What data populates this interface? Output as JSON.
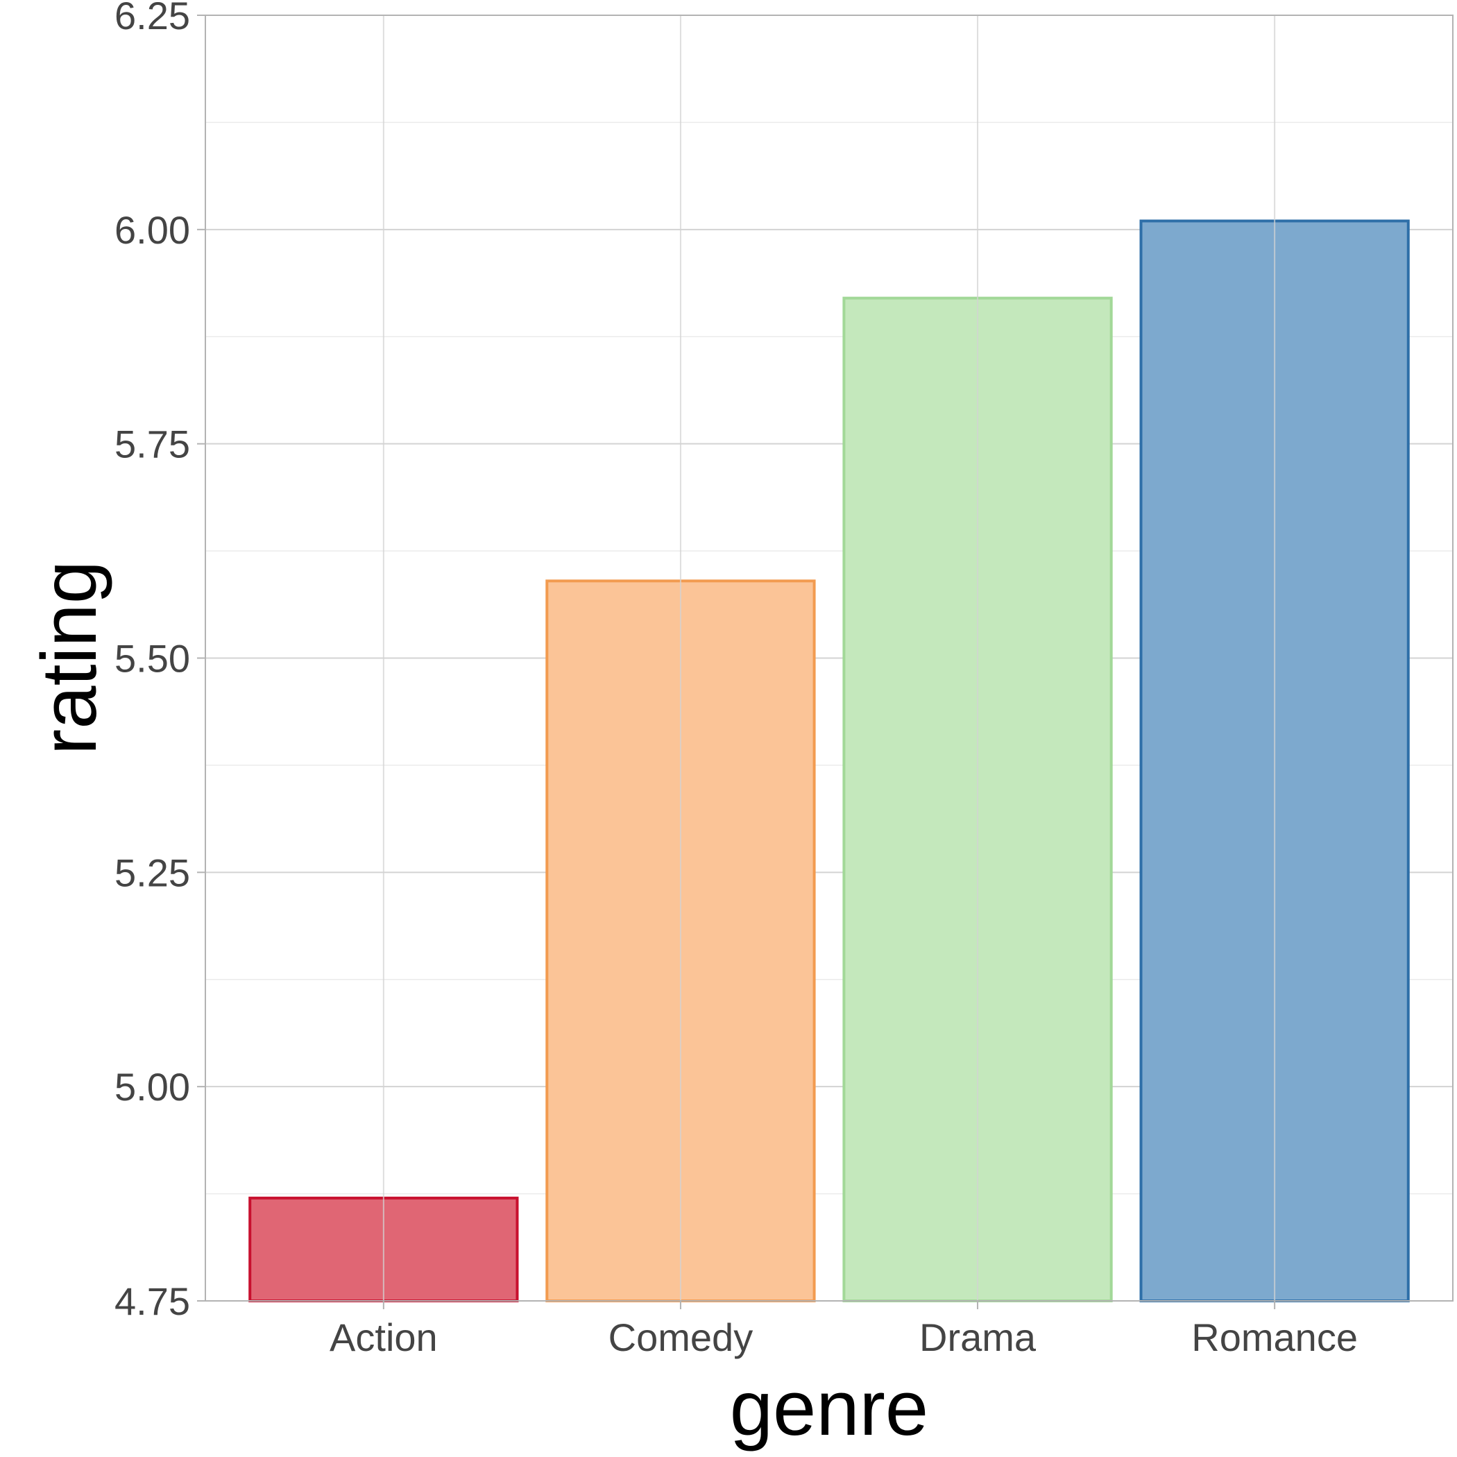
{
  "chart_data": {
    "type": "bar",
    "title": "",
    "xlabel": "genre",
    "ylabel": "rating",
    "categories": [
      "Action",
      "Comedy",
      "Drama",
      "Romance"
    ],
    "values": [
      4.87,
      5.59,
      5.92,
      6.01
    ],
    "colors": {
      "fill": [
        "#E06674",
        "#FBC497",
        "#C4E8BC",
        "#7DA9CE"
      ],
      "stroke": [
        "#C8102E",
        "#F29B50",
        "#A2D898",
        "#2E6FA8"
      ]
    },
    "ylim": [
      4.75,
      6.25
    ],
    "y_ticks": [
      "4.75",
      "5.00",
      "5.25",
      "5.50",
      "5.75",
      "6.00",
      "6.25"
    ],
    "grid": true,
    "legend": "none"
  }
}
